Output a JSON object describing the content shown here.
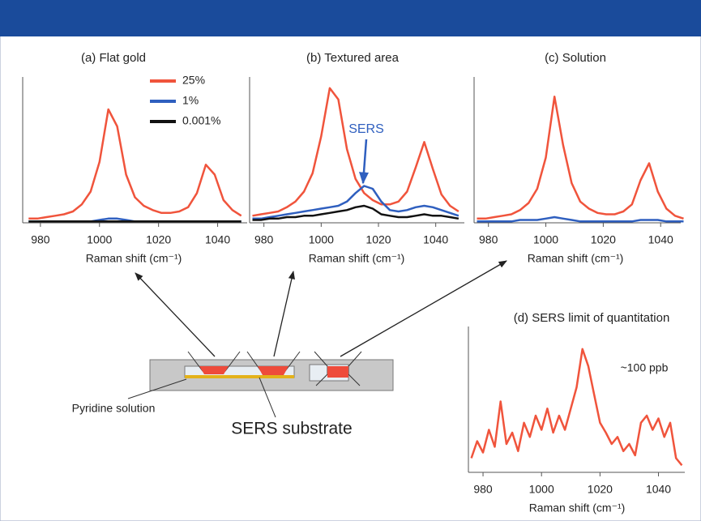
{
  "chart_data": [
    {
      "type": "line",
      "title": "(a) Flat gold",
      "x_label": "Raman shift (cm⁻¹)",
      "x": [
        976,
        979,
        982,
        985,
        988,
        991,
        994,
        997,
        1000,
        1003,
        1006,
        1009,
        1012,
        1015,
        1018,
        1021,
        1024,
        1027,
        1030,
        1033,
        1036,
        1039,
        1042,
        1045,
        1048
      ],
      "xlim": [
        974,
        1050
      ],
      "xticks": [
        980,
        1000,
        1020,
        1040
      ],
      "ylim": [
        0,
        100
      ],
      "series": [
        {
          "name": "25%",
          "color": "#f0543c",
          "values": [
            3,
            3,
            4,
            5,
            6,
            8,
            13,
            22,
            43,
            80,
            68,
            34,
            18,
            12,
            9,
            7,
            7,
            8,
            11,
            21,
            41,
            34,
            16,
            9,
            5
          ]
        },
        {
          "name": "1%",
          "color": "#2f5fbf",
          "values": [
            1,
            1,
            1,
            1,
            1,
            1,
            1,
            1,
            2,
            3,
            3,
            2,
            1,
            1,
            1,
            1,
            1,
            1,
            1,
            1,
            1,
            1,
            1,
            1,
            1
          ]
        },
        {
          "name": "0.001%",
          "color": "#111111",
          "values": [
            1,
            1,
            1,
            1,
            1,
            1,
            1,
            1,
            1,
            1,
            1,
            1,
            1,
            1,
            1,
            1,
            1,
            1,
            1,
            1,
            1,
            1,
            1,
            1,
            1
          ]
        }
      ]
    },
    {
      "type": "line",
      "title": "(b) Textured area",
      "x_label": "Raman shift (cm⁻¹)",
      "annotation": "SERS",
      "x": [
        976,
        979,
        982,
        985,
        988,
        991,
        994,
        997,
        1000,
        1003,
        1006,
        1009,
        1012,
        1015,
        1018,
        1021,
        1024,
        1027,
        1030,
        1033,
        1036,
        1039,
        1042,
        1045,
        1048
      ],
      "xlim": [
        975,
        1050
      ],
      "xticks": [
        980,
        1000,
        1020,
        1040
      ],
      "ylim": [
        0,
        100
      ],
      "series": [
        {
          "color": "#f0543c",
          "values": [
            5,
            6,
            7,
            8,
            11,
            15,
            22,
            35,
            61,
            95,
            87,
            52,
            31,
            21,
            16,
            13,
            13,
            15,
            22,
            39,
            57,
            38,
            20,
            12,
            8
          ]
        },
        {
          "color": "#2f5fbf",
          "values": [
            3,
            3,
            4,
            5,
            6,
            7,
            8,
            9,
            10,
            11,
            12,
            15,
            21,
            26,
            24,
            15,
            9,
            8,
            9,
            11,
            12,
            11,
            9,
            7,
            5
          ]
        },
        {
          "color": "#111111",
          "values": [
            2,
            2,
            3,
            3,
            4,
            4,
            5,
            5,
            6,
            7,
            8,
            9,
            11,
            12,
            10,
            6,
            5,
            4,
            4,
            5,
            6,
            5,
            5,
            4,
            3
          ]
        }
      ]
    },
    {
      "type": "line",
      "title": "(c) Solution",
      "x_label": "Raman shift (cm⁻¹)",
      "x": [
        976,
        979,
        982,
        985,
        988,
        991,
        994,
        997,
        1000,
        1003,
        1006,
        1009,
        1012,
        1015,
        1018,
        1021,
        1024,
        1027,
        1030,
        1033,
        1036,
        1039,
        1042,
        1045,
        1048
      ],
      "xlim": [
        975,
        1047
      ],
      "xticks": [
        980,
        1000,
        1020,
        1040
      ],
      "ylim": [
        0,
        100
      ],
      "series": [
        {
          "color": "#f0543c",
          "values": [
            3,
            3,
            4,
            5,
            6,
            9,
            14,
            24,
            46,
            89,
            55,
            28,
            15,
            10,
            7,
            6,
            6,
            8,
            13,
            30,
            42,
            22,
            10,
            5,
            3
          ]
        },
        {
          "color": "#2f5fbf",
          "values": [
            1,
            1,
            1,
            1,
            1,
            2,
            2,
            2,
            3,
            4,
            3,
            2,
            1,
            1,
            1,
            1,
            1,
            1,
            1,
            2,
            2,
            2,
            1,
            1,
            1
          ]
        }
      ]
    },
    {
      "type": "line",
      "title": "(d) SERS limit of quantitation",
      "x_label": "Raman shift (cm⁻¹)",
      "annotation": "~100 ppb",
      "x": [
        976,
        978,
        980,
        982,
        984,
        986,
        988,
        990,
        992,
        994,
        996,
        998,
        1000,
        1002,
        1004,
        1006,
        1008,
        1010,
        1012,
        1014,
        1016,
        1018,
        1020,
        1022,
        1024,
        1026,
        1028,
        1030,
        1032,
        1034,
        1036,
        1038,
        1040,
        1042,
        1044,
        1046,
        1048
      ],
      "xlim": [
        975,
        1049
      ],
      "xticks": [
        980,
        1000,
        1020,
        1040
      ],
      "ylim": [
        0,
        100
      ],
      "series": [
        {
          "color": "#f0543c",
          "values": [
            10,
            22,
            14,
            30,
            18,
            50,
            20,
            28,
            15,
            35,
            25,
            40,
            30,
            45,
            28,
            40,
            30,
            45,
            60,
            87,
            75,
            55,
            35,
            28,
            20,
            25,
            15,
            20,
            12,
            35,
            40,
            30,
            38,
            25,
            35,
            10,
            5
          ]
        }
      ]
    }
  ],
  "diagram": {
    "solution_label": "Pyridine solution",
    "substrate_label": "SERS substrate"
  }
}
